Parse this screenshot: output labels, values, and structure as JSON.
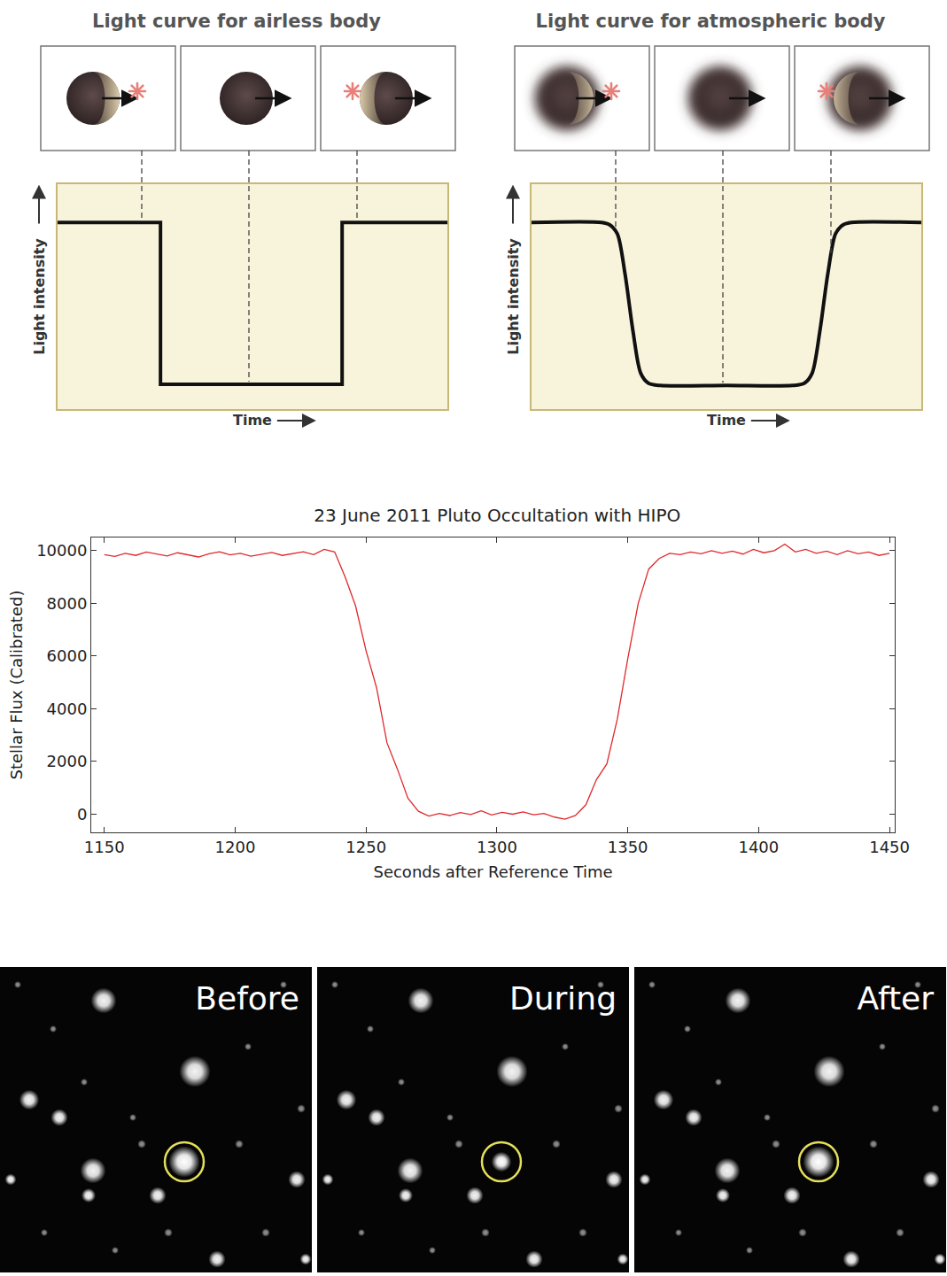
{
  "chart_data": [
    {
      "type": "line",
      "title": "Light curve for airless body",
      "x_label": "Time",
      "y_label": "Light intensity",
      "x": [
        0,
        26.4,
        26.4,
        73,
        73,
        100
      ],
      "values": [
        83,
        83,
        11,
        11,
        83,
        83
      ],
      "xlim": [
        0,
        100
      ],
      "ylim": [
        0,
        100
      ],
      "tick_labels": false,
      "grid": false,
      "color": "#111111",
      "line_style": "linear"
    },
    {
      "type": "line",
      "title": "Light curve for atmospheric body",
      "x_label": "Time",
      "y_label": "Light intensity",
      "x": [
        0,
        18,
        20,
        22,
        24,
        26,
        28,
        30,
        33,
        50,
        67,
        70,
        72,
        74,
        76,
        78,
        80,
        82,
        100
      ],
      "values": [
        83,
        83,
        82,
        78,
        60,
        35,
        16,
        11.5,
        10.5,
        10.5,
        10.5,
        11.5,
        16,
        35,
        60,
        78,
        82,
        83,
        83
      ],
      "xlim": [
        0,
        100
      ],
      "ylim": [
        0,
        100
      ],
      "tick_labels": false,
      "grid": false,
      "color": "#111111",
      "line_style": "smooth"
    },
    {
      "type": "line",
      "title": "23 June 2011 Pluto Occultation with HIPO",
      "x_label": "Seconds after Reference Time",
      "y_label": "Stellar Flux (Calibrated)",
      "x": [
        1150,
        1154,
        1158,
        1162,
        1166,
        1170,
        1174,
        1178,
        1182,
        1186,
        1190,
        1194,
        1198,
        1202,
        1206,
        1210,
        1214,
        1218,
        1222,
        1226,
        1230,
        1234,
        1238,
        1242,
        1246,
        1250,
        1254,
        1258,
        1262,
        1266,
        1270,
        1274,
        1278,
        1282,
        1286,
        1290,
        1294,
        1298,
        1302,
        1306,
        1310,
        1314,
        1318,
        1322,
        1326,
        1330,
        1334,
        1338,
        1342,
        1346,
        1350,
        1354,
        1358,
        1362,
        1366,
        1370,
        1374,
        1378,
        1382,
        1386,
        1390,
        1394,
        1398,
        1402,
        1406,
        1410,
        1414,
        1418,
        1422,
        1426,
        1430,
        1434,
        1438,
        1442,
        1446,
        1450
      ],
      "values": [
        9850,
        9780,
        9900,
        9820,
        9950,
        9870,
        9800,
        9920,
        9850,
        9760,
        9880,
        9960,
        9840,
        9900,
        9790,
        9870,
        9930,
        9820,
        9890,
        9960,
        9850,
        10050,
        9950,
        9000,
        7900,
        6200,
        4800,
        2700,
        1700,
        600,
        100,
        -80,
        20,
        -60,
        50,
        -20,
        120,
        -40,
        60,
        -10,
        80,
        -30,
        20,
        -120,
        -200,
        -60,
        350,
        1300,
        1900,
        3600,
        5900,
        8000,
        9300,
        9700,
        9900,
        9850,
        9950,
        9880,
        10000,
        9900,
        9980,
        9870,
        10050,
        9920,
        10000,
        10250,
        9950,
        10050,
        9900,
        9980,
        9850,
        10000,
        9880,
        9950,
        9820,
        9900
      ],
      "xlim": [
        1145,
        1452
      ],
      "ylim": [
        -700,
        10500
      ],
      "xticks": [
        1150,
        1200,
        1250,
        1300,
        1350,
        1400,
        1450
      ],
      "yticks": [
        0,
        2000,
        4000,
        6000,
        8000,
        10000
      ],
      "grid": false,
      "color": "#e0282c",
      "line_style": "linear"
    }
  ],
  "images": {
    "panels": [
      {
        "label": "Before"
      },
      {
        "label": "During"
      },
      {
        "label": "After"
      }
    ]
  }
}
